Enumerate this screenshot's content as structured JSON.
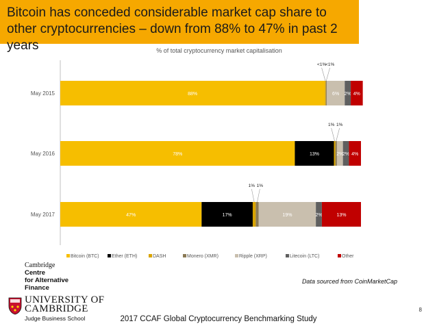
{
  "header": {
    "title": "Bitcoin has conceded considerable market cap share to other cryptocurrencies – down from 88% to 47% in past 2 years"
  },
  "chart_data": {
    "type": "bar",
    "orientation": "horizontal",
    "stacked": true,
    "title": "% of total cryptocurrency market capitalisation",
    "xlabel": "",
    "ylabel": "",
    "xlim": [
      0,
      100
    ],
    "legend_position": "bottom",
    "categories": [
      "May 2015",
      "May 2016",
      "May 2017"
    ],
    "series": [
      {
        "name": "Bitcoin (BTC)",
        "color": "#f6be00",
        "values": [
          88,
          78,
          47
        ],
        "labels": [
          "88%",
          "78%",
          "47%"
        ],
        "label_color": "#ffffff"
      },
      {
        "name": "Ether (ETH)",
        "color": "#000000",
        "values": [
          0,
          13,
          17
        ],
        "labels": [
          "",
          "13%",
          "17%"
        ],
        "label_color": "#ffffff"
      },
      {
        "name": "DASH",
        "color": "#d9a400",
        "values": [
          0.3,
          0.5,
          1
        ],
        "labels": [
          "<1%",
          "1%",
          "1%"
        ],
        "label_color": "#222222",
        "label_outside": true
      },
      {
        "name": "Monero (XMR)",
        "color": "#8a7a55",
        "values": [
          0.3,
          0.5,
          1
        ],
        "labels": [
          "<1%",
          "1%",
          "1%"
        ],
        "label_color": "#222222",
        "label_outside": true
      },
      {
        "name": "Ripple (XRP)",
        "color": "#c9bfae",
        "values": [
          6,
          2,
          19
        ],
        "labels": [
          "6%",
          "2%",
          "19%"
        ],
        "label_color": "#ffffff"
      },
      {
        "name": "Litecoin (LTC)",
        "color": "#5f5f5f",
        "values": [
          2,
          2,
          2
        ],
        "labels": [
          "2%",
          "2%",
          "2%"
        ],
        "label_color": "#ffffff"
      },
      {
        "name": "Other",
        "color": "#c00000",
        "values": [
          4,
          4,
          13
        ],
        "labels": [
          "4%",
          "4%",
          "13%"
        ],
        "label_color": "#ffffff"
      }
    ]
  },
  "branding": {
    "centre_line1": "Cambridge",
    "centre_line2": "Centre",
    "centre_line3": "for Alternative",
    "centre_line4": "Finance",
    "university_line1": "UNIVERSITY OF",
    "university_line2": "CAMBRIDGE",
    "university_line3": "Judge Business School"
  },
  "source_note": "Data sourced from CoinMarketCap",
  "page_number": "8",
  "footer": "2017 CCAF Global Cryptocurrency Benchmarking Study"
}
